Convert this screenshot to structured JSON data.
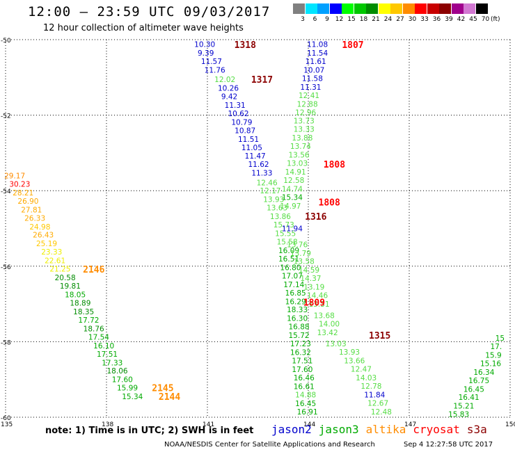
{
  "header": {
    "title": "12:00 – 23:59 UTC 09/03/2017",
    "subtitle": "12 hour collection of altimeter wave heights"
  },
  "legend": {
    "unit": "(ft)",
    "items": [
      {
        "label": "3",
        "color": "#808080"
      },
      {
        "label": "6",
        "color": "#00e5ff"
      },
      {
        "label": "9",
        "color": "#00a0ff"
      },
      {
        "label": "12",
        "color": "#0000ff"
      },
      {
        "label": "15",
        "color": "#00ff00"
      },
      {
        "label": "18",
        "color": "#00c800"
      },
      {
        "label": "21",
        "color": "#008c00"
      },
      {
        "label": "24",
        "color": "#ffff00"
      },
      {
        "label": "27",
        "color": "#ffc800"
      },
      {
        "label": "30",
        "color": "#ff8c00"
      },
      {
        "label": "33",
        "color": "#ff0000"
      },
      {
        "label": "36",
        "color": "#c80000"
      },
      {
        "label": "39",
        "color": "#8c0000"
      },
      {
        "label": "42",
        "color": "#a0008c"
      },
      {
        "label": "45",
        "color": "#d278d2"
      },
      {
        "label": "70",
        "color": "#000000"
      }
    ]
  },
  "map": {
    "lon_range": [
      135,
      150
    ],
    "lat_range": [
      -60,
      -50
    ],
    "lon_ticks": [
      "135",
      "138",
      "141",
      "144",
      "147",
      "150"
    ],
    "lat_ticks": [
      "-50",
      "-52",
      "-54",
      "-56",
      "-58",
      "-60"
    ]
  },
  "tracks": [
    {
      "name": "cryosat-1318",
      "points": [
        {
          "lon": 140.9,
          "lat": -50.12,
          "text": "10.30",
          "color": "#0000cc"
        },
        {
          "lon": 141.0,
          "lat": -50.35,
          "text": "9.39",
          "color": "#0000cc"
        },
        {
          "lon": 141.1,
          "lat": -50.57,
          "text": "11.57",
          "color": "#0000cc"
        },
        {
          "lon": 141.2,
          "lat": -50.8,
          "text": "11.76",
          "color": "#0000cc"
        }
      ]
    },
    {
      "name": "cryosat-1317",
      "points": [
        {
          "lon": 141.5,
          "lat": -51.05,
          "text": "12.02",
          "color": "#55dd44"
        },
        {
          "lon": 141.6,
          "lat": -51.28,
          "text": "10.26",
          "color": "#0000cc"
        },
        {
          "lon": 141.7,
          "lat": -51.5,
          "text": "9.42",
          "color": "#0000cc"
        },
        {
          "lon": 141.8,
          "lat": -51.73,
          "text": "11.31",
          "color": "#0000cc"
        },
        {
          "lon": 141.9,
          "lat": -51.95,
          "text": "10.62",
          "color": "#0000cc"
        },
        {
          "lon": 142.0,
          "lat": -52.18,
          "text": "10.79",
          "color": "#0000cc"
        },
        {
          "lon": 142.1,
          "lat": -52.4,
          "text": "10.87",
          "color": "#0000cc"
        },
        {
          "lon": 142.2,
          "lat": -52.63,
          "text": "11.51",
          "color": "#0000cc"
        },
        {
          "lon": 142.3,
          "lat": -52.85,
          "text": "11.05",
          "color": "#0000cc"
        },
        {
          "lon": 142.4,
          "lat": -53.08,
          "text": "11.47",
          "color": "#0000cc"
        },
        {
          "lon": 142.5,
          "lat": -53.3,
          "text": "11.62",
          "color": "#0000cc"
        },
        {
          "lon": 142.6,
          "lat": -53.53,
          "text": "11.33",
          "color": "#0000cc"
        },
        {
          "lon": 142.75,
          "lat": -53.78,
          "text": "12.46",
          "color": "#55dd44"
        },
        {
          "lon": 142.85,
          "lat": -54.0,
          "text": "12.17",
          "color": "#55dd44"
        },
        {
          "lon": 142.95,
          "lat": -54.23,
          "text": "13.93",
          "color": "#55dd44"
        },
        {
          "lon": 143.05,
          "lat": -54.45,
          "text": "13.63",
          "color": "#55dd44"
        },
        {
          "lon": 143.15,
          "lat": -54.68,
          "text": "13.86",
          "color": "#55dd44"
        },
        {
          "lon": 143.25,
          "lat": -54.9,
          "text": "15.73",
          "color": "#55dd44"
        },
        {
          "lon": 143.3,
          "lat": -55.13,
          "text": "15.55",
          "color": "#55dd44"
        },
        {
          "lon": 143.35,
          "lat": -55.35,
          "text": "15.58",
          "color": "#55dd44"
        },
        {
          "lon": 143.4,
          "lat": -55.58,
          "text": "16.09",
          "color": "#00aa00"
        },
        {
          "lon": 143.4,
          "lat": -55.8,
          "text": "16.51",
          "color": "#00aa00"
        },
        {
          "lon": 143.45,
          "lat": -56.03,
          "text": "16.80",
          "color": "#00aa00"
        },
        {
          "lon": 143.5,
          "lat": -56.25,
          "text": "17.07",
          "color": "#00aa00"
        },
        {
          "lon": 143.55,
          "lat": -56.48,
          "text": "17.14",
          "color": "#00aa00"
        },
        {
          "lon": 143.6,
          "lat": -56.7,
          "text": "16.85",
          "color": "#00aa00"
        },
        {
          "lon": 143.6,
          "lat": -56.93,
          "text": "16.29",
          "color": "#00aa00"
        },
        {
          "lon": 143.65,
          "lat": -57.15,
          "text": "18.33",
          "color": "#00aa00"
        },
        {
          "lon": 143.65,
          "lat": -57.38,
          "text": "16.30",
          "color": "#00aa00"
        },
        {
          "lon": 143.7,
          "lat": -57.6,
          "text": "16.88",
          "color": "#00aa00"
        },
        {
          "lon": 143.7,
          "lat": -57.83,
          "text": "15.72",
          "color": "#00aa00"
        },
        {
          "lon": 143.75,
          "lat": -58.05,
          "text": "17.23",
          "color": "#00aa00"
        },
        {
          "lon": 143.75,
          "lat": -58.28,
          "text": "16.32",
          "color": "#00aa00"
        },
        {
          "lon": 143.8,
          "lat": -58.5,
          "text": "17.51",
          "color": "#00aa00"
        },
        {
          "lon": 143.8,
          "lat": -58.73,
          "text": "17.60",
          "color": "#00aa00"
        },
        {
          "lon": 143.85,
          "lat": -58.95,
          "text": "16.46",
          "color": "#00aa00"
        },
        {
          "lon": 143.85,
          "lat": -59.18,
          "text": "16.61",
          "color": "#00aa00"
        },
        {
          "lon": 143.9,
          "lat": -59.4,
          "text": "14.88",
          "color": "#55dd44"
        },
        {
          "lon": 143.9,
          "lat": -59.63,
          "text": "16.45",
          "color": "#00aa00"
        },
        {
          "lon": 143.95,
          "lat": -59.85,
          "text": "16.91",
          "color": "#00aa00"
        }
      ]
    },
    {
      "name": "cryosat-1807",
      "points": [
        {
          "lon": 144.25,
          "lat": -50.12,
          "text": "11.08",
          "color": "#0000cc"
        },
        {
          "lon": 144.25,
          "lat": -50.35,
          "text": "11.54",
          "color": "#0000cc"
        },
        {
          "lon": 144.2,
          "lat": -50.57,
          "text": "11.61",
          "color": "#0000cc"
        },
        {
          "lon": 144.15,
          "lat": -50.8,
          "text": "10.07",
          "color": "#0000cc"
        },
        {
          "lon": 144.1,
          "lat": -51.02,
          "text": "11.58",
          "color": "#0000cc"
        },
        {
          "lon": 144.05,
          "lat": -51.25,
          "text": "11.31",
          "color": "#0000cc"
        },
        {
          "lon": 144.0,
          "lat": -51.47,
          "text": "12.41",
          "color": "#55dd44"
        },
        {
          "lon": 143.95,
          "lat": -51.7,
          "text": "12.88",
          "color": "#55dd44"
        },
        {
          "lon": 143.9,
          "lat": -51.92,
          "text": "12.96",
          "color": "#55dd44"
        },
        {
          "lon": 143.85,
          "lat": -52.15,
          "text": "13.73",
          "color": "#55dd44"
        },
        {
          "lon": 143.85,
          "lat": -52.37,
          "text": "13.33",
          "color": "#55dd44"
        },
        {
          "lon": 143.8,
          "lat": -52.6,
          "text": "13.88",
          "color": "#55dd44"
        },
        {
          "lon": 143.75,
          "lat": -52.82,
          "text": "13.74",
          "color": "#55dd44"
        },
        {
          "lon": 143.7,
          "lat": -53.05,
          "text": "13.56",
          "color": "#55dd44"
        },
        {
          "lon": 143.65,
          "lat": -53.27,
          "text": "13.03",
          "color": "#55dd44"
        },
        {
          "lon": 143.6,
          "lat": -53.5,
          "text": "14.91",
          "color": "#55dd44"
        },
        {
          "lon": 143.55,
          "lat": -53.72,
          "text": "12.58",
          "color": "#55dd44"
        },
        {
          "lon": 143.5,
          "lat": -53.95,
          "text": "14.74",
          "color": "#55dd44"
        },
        {
          "lon": 143.5,
          "lat": -54.17,
          "text": "15.34",
          "color": "#00aa00"
        },
        {
          "lon": 143.45,
          "lat": -54.4,
          "text": "14.97",
          "color": "#55dd44"
        }
      ]
    },
    {
      "name": "cryosat-1316",
      "points": [
        {
          "lon": 143.5,
          "lat": -55.0,
          "text": "11.94",
          "color": "#0000cc"
        },
        {
          "lon": 143.65,
          "lat": -55.42,
          "text": "13.76",
          "color": "#55dd44"
        },
        {
          "lon": 143.75,
          "lat": -55.65,
          "text": "13.79",
          "color": "#55dd44"
        },
        {
          "lon": 143.85,
          "lat": -55.87,
          "text": "13.58",
          "color": "#55dd44"
        },
        {
          "lon": 144.0,
          "lat": -56.1,
          "text": "14.59",
          "color": "#55dd44"
        },
        {
          "lon": 144.05,
          "lat": -56.32,
          "text": "14.37",
          "color": "#55dd44"
        },
        {
          "lon": 144.15,
          "lat": -56.55,
          "text": "13.19",
          "color": "#55dd44"
        },
        {
          "lon": 144.25,
          "lat": -56.77,
          "text": "14.46",
          "color": "#55dd44"
        },
        {
          "lon": 144.3,
          "lat": -57.0,
          "text": "13.31",
          "color": "#55dd44"
        },
        {
          "lon": 144.45,
          "lat": -57.3,
          "text": "13.68",
          "color": "#55dd44"
        },
        {
          "lon": 144.6,
          "lat": -57.52,
          "text": "14.00",
          "color": "#55dd44"
        },
        {
          "lon": 144.55,
          "lat": -57.75,
          "text": "13.42",
          "color": "#55dd44"
        },
        {
          "lon": 144.8,
          "lat": -58.05,
          "text": "13.03",
          "color": "#55dd44"
        },
        {
          "lon": 145.2,
          "lat": -58.27,
          "text": "13.93",
          "color": "#55dd44"
        },
        {
          "lon": 145.35,
          "lat": -58.5,
          "text": "13.66",
          "color": "#55dd44"
        },
        {
          "lon": 145.55,
          "lat": -58.72,
          "text": "12.47",
          "color": "#55dd44"
        },
        {
          "lon": 145.7,
          "lat": -58.95,
          "text": "14.03",
          "color": "#55dd44"
        },
        {
          "lon": 145.85,
          "lat": -59.17,
          "text": "12.78",
          "color": "#55dd44"
        },
        {
          "lon": 145.95,
          "lat": -59.4,
          "text": "11.84",
          "color": "#0000cc"
        },
        {
          "lon": 146.05,
          "lat": -59.62,
          "text": "12.67",
          "color": "#55dd44"
        },
        {
          "lon": 146.15,
          "lat": -59.85,
          "text": "12.48",
          "color": "#55dd44"
        }
      ]
    },
    {
      "name": "altika-2146",
      "points": [
        {
          "lon": 135.25,
          "lat": -53.6,
          "text": "29.17",
          "color": "#ff8c00"
        },
        {
          "lon": 135.4,
          "lat": -53.82,
          "text": "30.23",
          "color": "#ff0000"
        },
        {
          "lon": 135.5,
          "lat": -54.05,
          "text": "28.21",
          "color": "#ffaa00"
        },
        {
          "lon": 135.65,
          "lat": -54.27,
          "text": "26.90",
          "color": "#ffaa00"
        },
        {
          "lon": 135.75,
          "lat": -54.5,
          "text": "27.81",
          "color": "#ffaa00"
        },
        {
          "lon": 135.85,
          "lat": -54.72,
          "text": "26.33",
          "color": "#ffaa00"
        },
        {
          "lon": 136.0,
          "lat": -54.95,
          "text": "24.98",
          "color": "#ffc800"
        },
        {
          "lon": 136.1,
          "lat": -55.17,
          "text": "26.43",
          "color": "#ffaa00"
        },
        {
          "lon": 136.2,
          "lat": -55.4,
          "text": "25.19",
          "color": "#ffc800"
        },
        {
          "lon": 136.35,
          "lat": -55.62,
          "text": "23.33",
          "color": "#eeee00"
        },
        {
          "lon": 136.45,
          "lat": -55.85,
          "text": "22.61",
          "color": "#eeee00"
        },
        {
          "lon": 136.6,
          "lat": -56.07,
          "text": "21.25",
          "color": "#eeee00"
        },
        {
          "lon": 136.75,
          "lat": -56.3,
          "text": "20.58",
          "color": "#008c00"
        },
        {
          "lon": 136.9,
          "lat": -56.52,
          "text": "19.81",
          "color": "#008c00"
        },
        {
          "lon": 137.05,
          "lat": -56.75,
          "text": "18.05",
          "color": "#00aa00"
        },
        {
          "lon": 137.2,
          "lat": -56.97,
          "text": "18.89",
          "color": "#008c00"
        },
        {
          "lon": 137.3,
          "lat": -57.2,
          "text": "18.35",
          "color": "#008c00"
        },
        {
          "lon": 137.45,
          "lat": -57.42,
          "text": "17.72",
          "color": "#00aa00"
        },
        {
          "lon": 137.6,
          "lat": -57.65,
          "text": "18.76",
          "color": "#008c00"
        },
        {
          "lon": 137.75,
          "lat": -57.87,
          "text": "17.54",
          "color": "#00aa00"
        },
        {
          "lon": 137.9,
          "lat": -58.1,
          "text": "16.10",
          "color": "#00aa00"
        },
        {
          "lon": 138.0,
          "lat": -58.32,
          "text": "17.51",
          "color": "#00aa00"
        }
      ]
    },
    {
      "name": "altika-2145",
      "points": [
        {
          "lon": 138.15,
          "lat": -58.55,
          "text": "17.33",
          "color": "#00aa00"
        },
        {
          "lon": 138.3,
          "lat": -58.77,
          "text": "18.06",
          "color": "#008c00"
        },
        {
          "lon": 138.45,
          "lat": -59.0,
          "text": "17.60",
          "color": "#00aa00"
        },
        {
          "lon": 138.6,
          "lat": -59.22,
          "text": "15.99",
          "color": "#00aa00"
        },
        {
          "lon": 138.75,
          "lat": -59.45,
          "text": "15.34",
          "color": "#00aa00"
        }
      ]
    },
    {
      "name": "jason3-east",
      "points": [
        {
          "lon": 149.85,
          "lat": -57.9,
          "text": "15",
          "color": "#00aa00"
        },
        {
          "lon": 149.7,
          "lat": -58.12,
          "text": "17.",
          "color": "#00aa00"
        },
        {
          "lon": 149.55,
          "lat": -58.35,
          "text": "15.9",
          "color": "#00aa00"
        },
        {
          "lon": 149.4,
          "lat": -58.57,
          "text": "15.16",
          "color": "#00aa00"
        },
        {
          "lon": 149.2,
          "lat": -58.8,
          "text": "16.34",
          "color": "#00aa00"
        },
        {
          "lon": 149.05,
          "lat": -59.02,
          "text": "16.75",
          "color": "#00aa00"
        },
        {
          "lon": 148.9,
          "lat": -59.25,
          "text": "16.45",
          "color": "#00aa00"
        },
        {
          "lon": 148.75,
          "lat": -59.47,
          "text": "16.41",
          "color": "#00aa00"
        },
        {
          "lon": 148.6,
          "lat": -59.7,
          "text": "15.21",
          "color": "#00aa00"
        },
        {
          "lon": 148.45,
          "lat": -59.92,
          "text": "15.83",
          "color": "#00aa00"
        }
      ]
    }
  ],
  "time_labels": [
    {
      "text": "1318",
      "lon": 141.8,
      "lat": -50.13,
      "color": "#8c0000"
    },
    {
      "text": "1317",
      "lon": 142.3,
      "lat": -51.05,
      "color": "#8c0000"
    },
    {
      "text": "1807",
      "lon": 145.0,
      "lat": -50.13,
      "color": "#ff0000"
    },
    {
      "text": "1808",
      "lon": 144.45,
      "lat": -53.3,
      "color": "#ff0000"
    },
    {
      "text": "1808",
      "lon": 144.3,
      "lat": -54.3,
      "color": "#ff0000"
    },
    {
      "text": "1316",
      "lon": 143.9,
      "lat": -54.68,
      "color": "#8c0000"
    },
    {
      "text": "1809",
      "lon": 143.85,
      "lat": -56.95,
      "color": "#ff0000"
    },
    {
      "text": "1315",
      "lon": 145.8,
      "lat": -57.83,
      "color": "#8c0000"
    },
    {
      "text": "2146",
      "lon": 137.3,
      "lat": -56.08,
      "color": "#ff8c00"
    },
    {
      "text": "2145",
      "lon": 139.35,
      "lat": -59.22,
      "color": "#ff8c00"
    },
    {
      "text": "2144",
      "lon": 139.55,
      "lat": -59.45,
      "color": "#ff8c00"
    }
  ],
  "footer": {
    "note": "note: 1) Time is in UTC; 2) SWH is in feet",
    "satellites": [
      {
        "label": "jason2",
        "color": "#0000cc"
      },
      {
        "label": "jason3",
        "color": "#00aa00"
      },
      {
        "label": "altika",
        "color": "#ff8c00"
      },
      {
        "label": "cryosat",
        "color": "#ff0000"
      },
      {
        "label": "s3a",
        "color": "#8c0000"
      }
    ],
    "credit": "NOAA/NESDIS Center for Satellite Applications and Research",
    "timestamp": "Sep  4 12:27:58 UTC 2017"
  }
}
